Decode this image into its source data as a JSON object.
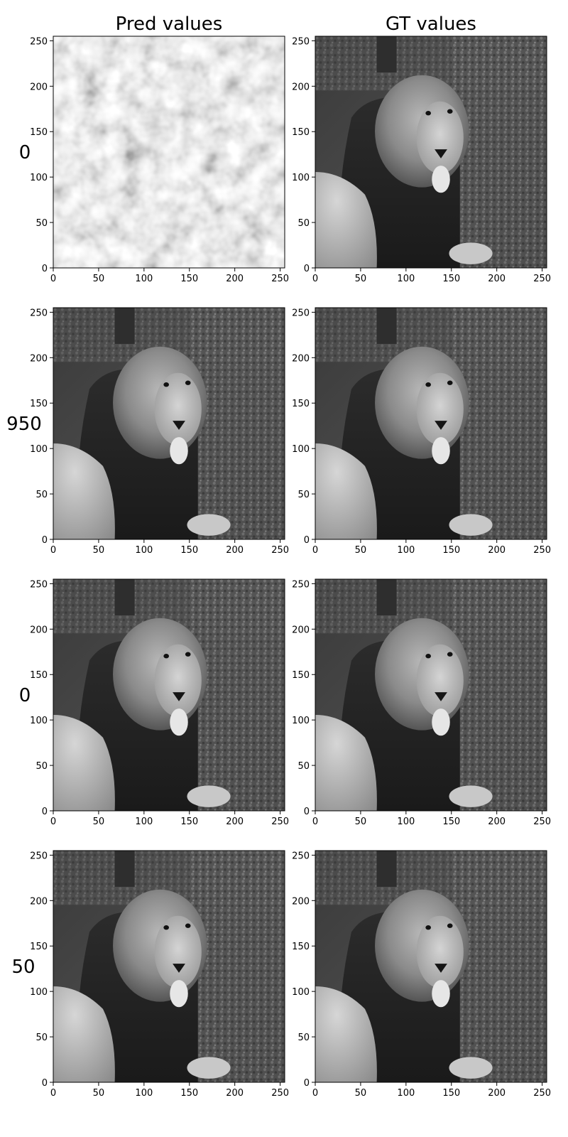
{
  "chart_data": {
    "type": "heatmap",
    "description_colormap": "gray",
    "columns": [
      "Pred values",
      "GT values"
    ],
    "rows": [
      {
        "label": "0",
        "pred_state": "noise"
      },
      {
        "label": "950",
        "pred_state": "reconstruction"
      },
      {
        "label": "0",
        "pred_state": "reconstruction"
      },
      {
        "label": "50",
        "pred_state": "reconstruction"
      }
    ],
    "x_ticks": [
      "0",
      "50",
      "100",
      "150",
      "200",
      "250"
    ],
    "y_ticks": [
      "0",
      "50",
      "100",
      "150",
      "200",
      "250"
    ],
    "xlim": [
      0,
      255
    ],
    "ylim": [
      255,
      0
    ]
  }
}
